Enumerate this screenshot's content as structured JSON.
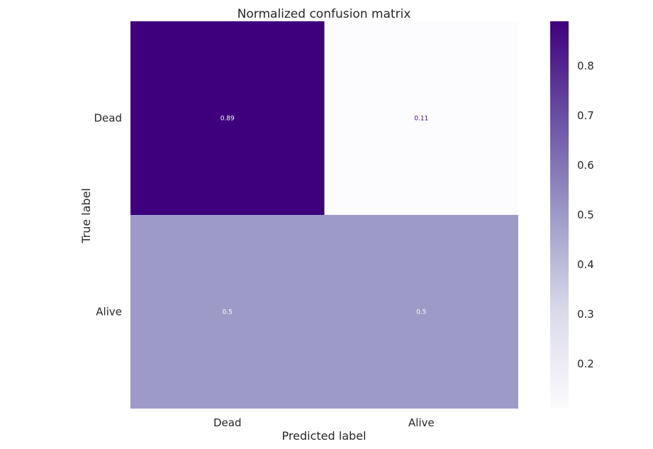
{
  "chart_data": {
    "type": "heatmap",
    "title": "Normalized confusion matrix",
    "xlabel": "Predicted label",
    "ylabel": "True label",
    "x_categories": [
      "Dead",
      "Alive"
    ],
    "y_categories": [
      "Dead",
      "Alive"
    ],
    "values": [
      [
        0.89,
        0.11
      ],
      [
        0.5,
        0.5
      ]
    ],
    "value_labels": [
      [
        "0.89",
        "0.11"
      ],
      [
        "0.5",
        "0.5"
      ]
    ],
    "colormap": "Purples",
    "colorbar": {
      "range": [
        0.11,
        0.89
      ],
      "ticks": [
        0.2,
        0.3,
        0.4,
        0.5,
        0.6,
        0.7,
        0.8
      ],
      "tick_labels": [
        "0.2",
        "0.3",
        "0.4",
        "0.5",
        "0.6",
        "0.7",
        "0.8"
      ]
    },
    "colors": {
      "min": "#fcfbfd",
      "mid": "#9e9ac8",
      "max": "#3f007d"
    }
  }
}
